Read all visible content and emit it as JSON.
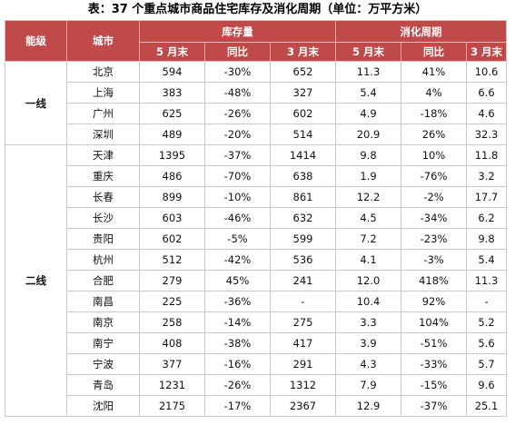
{
  "title": "表：37 个重点城市商品住宅库存及消化周期（单位：万平方米）",
  "header": {
    "tier": "能级",
    "city": "城市",
    "inventory_group": "库存量",
    "digest_group": "消化周期",
    "sub": [
      "5 月末",
      "同比",
      "3 月末",
      "5 月末",
      "同比",
      "3 月末"
    ]
  },
  "groups": [
    {
      "tier": "一线",
      "rows": [
        [
          "北京",
          "594",
          "-30%",
          "652",
          "11.3",
          "41%",
          "10.6"
        ],
        [
          "上海",
          "383",
          "-48%",
          "327",
          "5.4",
          "4%",
          "6.6"
        ],
        [
          "广州",
          "625",
          "-26%",
          "602",
          "4.9",
          "-18%",
          "4.6"
        ],
        [
          "深圳",
          "489",
          "-20%",
          "514",
          "20.9",
          "26%",
          "32.3"
        ]
      ]
    },
    {
      "tier": "二线",
      "rows": [
        [
          "天津",
          "1395",
          "-37%",
          "1414",
          "9.8",
          "10%",
          "11.8"
        ],
        [
          "重庆",
          "486",
          "-70%",
          "638",
          "1.9",
          "-76%",
          "3.2"
        ],
        [
          "长春",
          "899",
          "-10%",
          "861",
          "12.2",
          "-2%",
          "17.7"
        ],
        [
          "长沙",
          "603",
          "-46%",
          "632",
          "4.5",
          "-34%",
          "6.2"
        ],
        [
          "贵阳",
          "602",
          "-5%",
          "599",
          "7.2",
          "-23%",
          "9.8"
        ],
        [
          "杭州",
          "512",
          "-42%",
          "536",
          "4.1",
          "-3%",
          "5.4"
        ],
        [
          "合肥",
          "279",
          "45%",
          "241",
          "12.0",
          "418%",
          "11.3"
        ],
        [
          "南昌",
          "225",
          "-36%",
          "-",
          "10.4",
          "92%",
          "-"
        ],
        [
          "南京",
          "258",
          "-14%",
          "275",
          "3.3",
          "104%",
          "5.2"
        ],
        [
          "南宁",
          "408",
          "-38%",
          "417",
          "3.9",
          "-51%",
          "5.6"
        ],
        [
          "宁波",
          "377",
          "-16%",
          "291",
          "4.3",
          "-33%",
          "5.7"
        ],
        [
          "青岛",
          "1231",
          "-26%",
          "1312",
          "7.9",
          "-15%",
          "9.6"
        ],
        [
          "沈阳",
          "2175",
          "-17%",
          "2367",
          "12.9",
          "-37%",
          "25.1"
        ]
      ]
    }
  ]
}
